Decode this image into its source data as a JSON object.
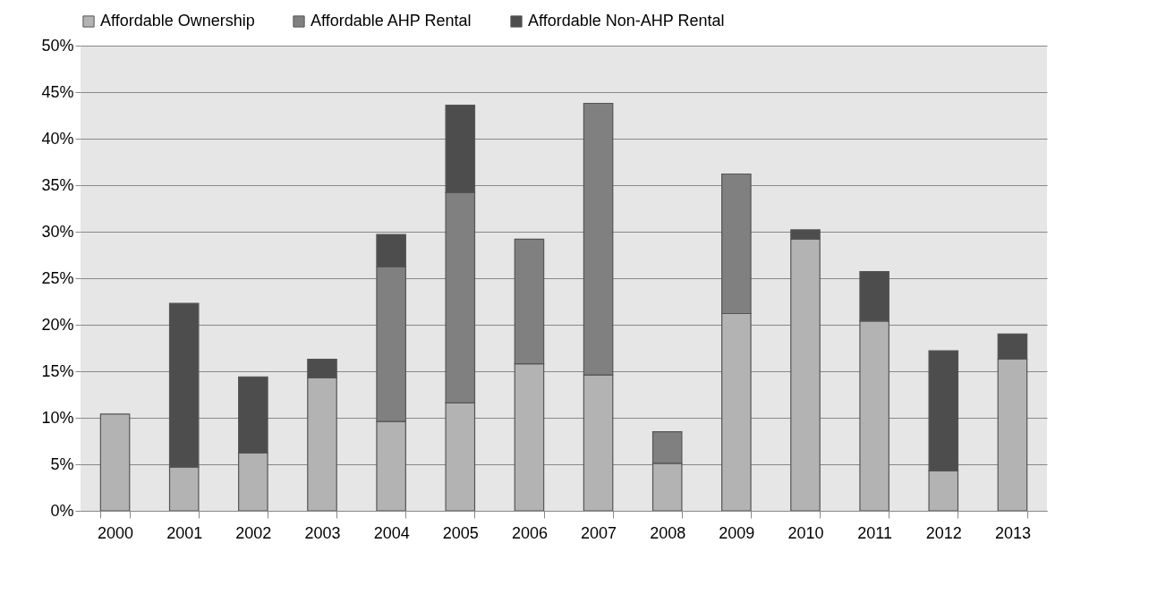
{
  "chart_data": {
    "type": "bar",
    "stacked": true,
    "legend": "top",
    "grid": "y",
    "categories": [
      "2000",
      "2001",
      "2002",
      "2003",
      "2004",
      "2005",
      "2006",
      "2007",
      "2008",
      "2009",
      "2010",
      "2011",
      "2012",
      "2013"
    ],
    "series": [
      {
        "name": "Affordable Ownership",
        "color": "#b3b3b3",
        "values": [
          10.4,
          4.7,
          6.2,
          14.3,
          9.6,
          11.6,
          15.8,
          14.6,
          5.1,
          21.2,
          29.2,
          20.4,
          4.3,
          16.3
        ]
      },
      {
        "name": "Affordable AHP Rental",
        "color": "#808080",
        "values": [
          null,
          null,
          null,
          null,
          16.6,
          22.6,
          13.4,
          29.2,
          3.4,
          15.0,
          null,
          null,
          null,
          null
        ]
      },
      {
        "name": "Affordable Non-AHP Rental",
        "color": "#4d4d4d",
        "values": [
          null,
          17.6,
          8.2,
          2.0,
          3.5,
          9.4,
          null,
          null,
          null,
          null,
          1.0,
          5.3,
          12.9,
          2.7
        ]
      }
    ],
    "ylim": [
      0,
      50
    ],
    "yticks": [
      {
        "value": 0,
        "label": "0%"
      },
      {
        "value": 5,
        "label": "5%"
      },
      {
        "value": 10,
        "label": "10%"
      },
      {
        "value": 15,
        "label": "15%"
      },
      {
        "value": 20,
        "label": "20%"
      },
      {
        "value": 25,
        "label": "25%"
      },
      {
        "value": 30,
        "label": "30%"
      },
      {
        "value": 35,
        "label": "35%"
      },
      {
        "value": 40,
        "label": "40%"
      },
      {
        "value": 45,
        "label": "45%"
      },
      {
        "value": 50,
        "label": "50%"
      }
    ]
  }
}
